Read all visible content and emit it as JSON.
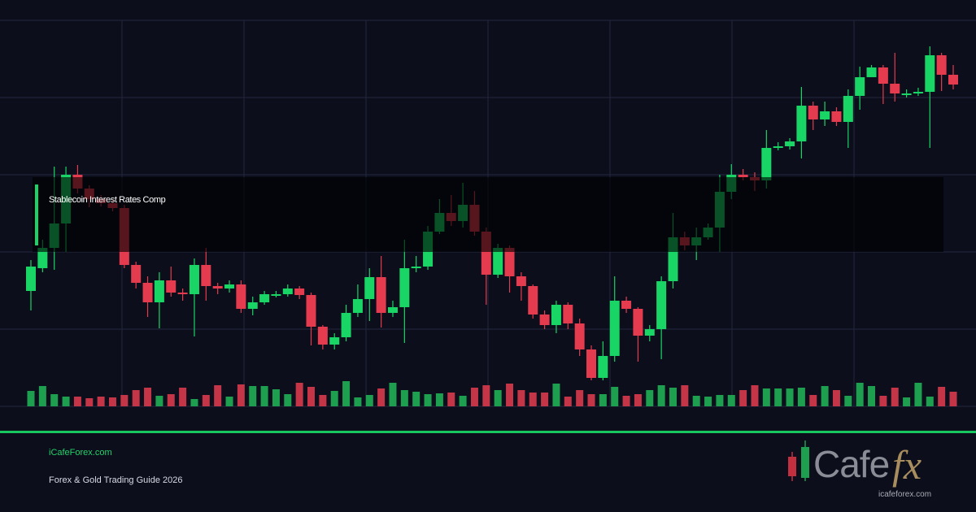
{
  "chart_data": {
    "type": "candlestick",
    "ylim": [
      0,
      475
    ],
    "up_color": "#19d565",
    "down_color": "#e53b4f",
    "volume_up_color": "#1e9f50",
    "volume_down_color": "#c33547",
    "open": [
      142,
      170,
      195,
      225,
      285,
      268,
      255,
      250,
      244,
      174,
      152,
      128,
      155,
      140,
      138,
      174,
      148,
      145,
      150,
      120,
      128,
      138,
      138,
      145,
      137,
      98,
      76,
      85,
      115,
      132,
      159,
      115,
      122,
      170,
      172,
      215,
      238,
      228,
      248,
      215,
      162,
      195,
      160,
      148,
      113,
      100,
      125,
      102,
      70,
      35,
      62,
      130,
      120,
      87,
      95,
      154,
      208,
      198,
      208,
      220,
      264,
      285,
      282,
      278,
      318,
      320,
      326,
      370,
      353,
      363,
      350,
      382,
      405,
      417,
      397,
      385,
      385,
      387,
      432,
      408
    ],
    "high": [
      180,
      205,
      295,
      295,
      297,
      272,
      260,
      253,
      248,
      178,
      160,
      165,
      172,
      145,
      182,
      195,
      152,
      155,
      155,
      135,
      142,
      142,
      150,
      148,
      140,
      100,
      90,
      125,
      150,
      170,
      185,
      130,
      205,
      185,
      222,
      255,
      260,
      275,
      265,
      220,
      200,
      198,
      165,
      150,
      118,
      130,
      128,
      108,
      75,
      80,
      160,
      135,
      122,
      100,
      160,
      238,
      215,
      220,
      225,
      285,
      298,
      292,
      288,
      340,
      325,
      330,
      393,
      375,
      375,
      368,
      390,
      418,
      420,
      420,
      435,
      390,
      392,
      443,
      435,
      420
    ],
    "low": [
      118,
      165,
      168,
      190,
      262,
      245,
      246,
      240,
      170,
      145,
      110,
      96,
      135,
      130,
      86,
      130,
      138,
      140,
      115,
      112,
      125,
      134,
      135,
      132,
      75,
      70,
      70,
      80,
      110,
      105,
      97,
      110,
      78,
      165,
      168,
      212,
      222,
      220,
      210,
      125,
      158,
      140,
      130,
      108,
      95,
      90,
      95,
      62,
      32,
      32,
      55,
      115,
      55,
      80,
      58,
      145,
      192,
      180,
      205,
      190,
      255,
      278,
      265,
      268,
      315,
      316,
      305,
      340,
      345,
      345,
      318,
      365,
      405,
      372,
      375,
      380,
      382,
      318,
      388,
      390
    ],
    "close": [
      172,
      195,
      225,
      285,
      268,
      255,
      250,
      244,
      174,
      152,
      128,
      155,
      140,
      138,
      174,
      148,
      145,
      150,
      120,
      128,
      138,
      138,
      145,
      137,
      98,
      76,
      85,
      115,
      132,
      159,
      115,
      122,
      170,
      172,
      215,
      238,
      228,
      248,
      215,
      162,
      195,
      160,
      148,
      113,
      100,
      125,
      102,
      70,
      35,
      62,
      130,
      120,
      87,
      95,
      154,
      208,
      198,
      208,
      220,
      264,
      285,
      282,
      278,
      318,
      320,
      326,
      370,
      353,
      363,
      350,
      382,
      405,
      417,
      397,
      385,
      385,
      387,
      432,
      408,
      396
    ],
    "volume": [
      19,
      25,
      15,
      12,
      12,
      10,
      12,
      11,
      14,
      20,
      23,
      13,
      15,
      23,
      9,
      14,
      26,
      12,
      27,
      25,
      25,
      21,
      15,
      29,
      24,
      14,
      19,
      31,
      11,
      14,
      22,
      29,
      20,
      18,
      15,
      16,
      17,
      13,
      23,
      26,
      20,
      28,
      20,
      17,
      17,
      28,
      12,
      20,
      15,
      15,
      24,
      13,
      15,
      20,
      26,
      23,
      26,
      13,
      12,
      14,
      14,
      20,
      26,
      22,
      22,
      22,
      23,
      14,
      25,
      20,
      13,
      29,
      25,
      13,
      23,
      11,
      29,
      12,
      24,
      18
    ]
  },
  "overlay_label": "Stablecoin Interest Rates Comp",
  "footer": {
    "site": "iCafeForex.com",
    "subtitle": "Forex & Gold Trading Guide 2026"
  },
  "logo": {
    "word": "Cafe",
    "accent": "fx",
    "url": "icafeforex.com"
  }
}
